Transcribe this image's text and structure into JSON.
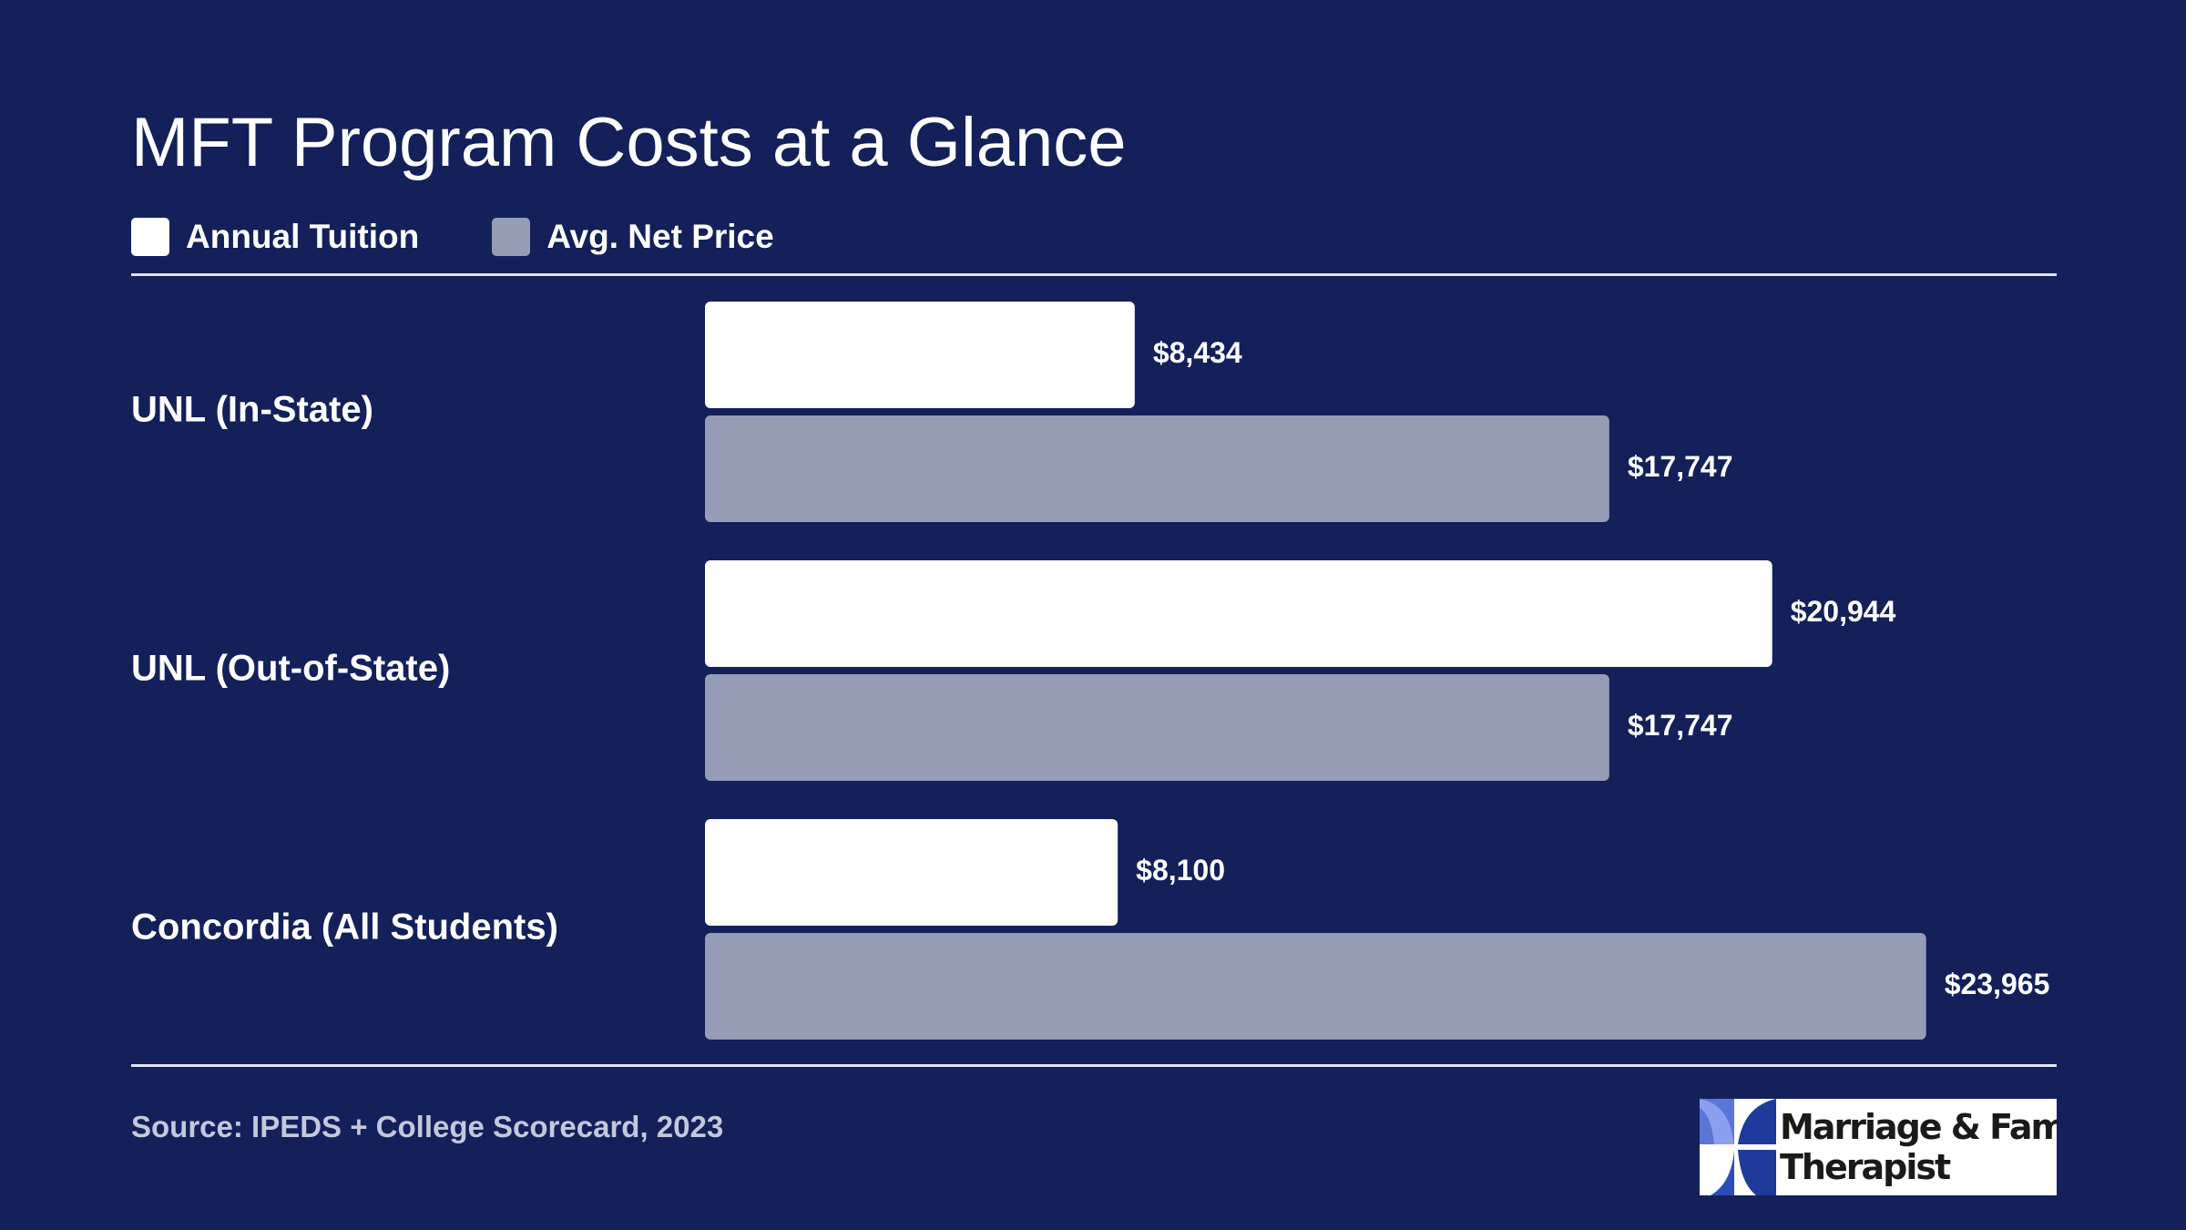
{
  "colors": {
    "background": "#13205a",
    "tuition": "#ffffff",
    "net_price": "#969cb6",
    "rule": "#e3e6f2",
    "source_text": "#c4c8dc"
  },
  "legend": {
    "tuition_label": "Annual Tuition",
    "net_price_label": "Avg. Net Price"
  },
  "footer": {
    "source": "Source: IPEDS + College Scorecard, 2023",
    "logo_line1": "Marriage & Family",
    "logo_line2": "Therapist"
  },
  "chart_data": {
    "type": "bar",
    "orientation": "horizontal",
    "title": "MFT Program Costs at a Glance",
    "categories": [
      "UNL (In-State)",
      "UNL (Out-of-State)",
      "Concordia (All Students)"
    ],
    "series": [
      {
        "name": "Annual Tuition",
        "values": [
          8434,
          20944,
          8100
        ],
        "labels": [
          "$8,434",
          "$20,944",
          "$8,100"
        ]
      },
      {
        "name": "Avg. Net Price",
        "values": [
          17747,
          17747,
          23965
        ],
        "labels": [
          "$17,747",
          "$17,747",
          "$23,965"
        ]
      }
    ],
    "xlim": [
      0,
      28600
    ],
    "grid": false,
    "legend_position": "top-left"
  }
}
